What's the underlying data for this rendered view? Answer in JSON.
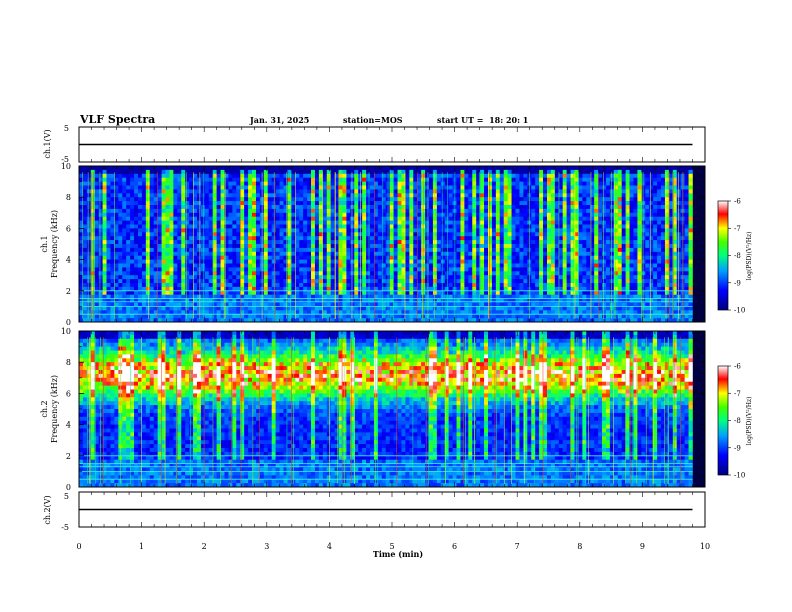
{
  "header": {
    "title": "VLF Spectra",
    "date": "Jan. 31, 2025",
    "station": "station=MOS",
    "start_ut": "start UT =  18: 20: 1"
  },
  "chart_data": [
    {
      "type": "line",
      "panel": "ch1-voltage",
      "ylabel": "ch.1(V)",
      "ylim": [
        -5,
        5
      ],
      "yticks": [
        "5",
        "-5"
      ],
      "series": [
        {
          "name": "",
          "x": [
            0,
            9.8
          ],
          "y": [
            0,
            0
          ]
        }
      ]
    },
    {
      "type": "heatmap",
      "panel": "ch1-spectrogram",
      "ylabel": "ch.1\nFrequency (kHz)",
      "ylim": [
        0,
        10
      ],
      "yticks": [
        "0",
        "2",
        "4",
        "6",
        "8",
        "10"
      ],
      "x_range_min": [
        0,
        9.8
      ],
      "dominant_band_khz": [
        2,
        10
      ],
      "colorbar": {
        "label": "log(PSD)(V²/Hz)",
        "range": [
          -10,
          -6
        ],
        "ticks": [
          "-6",
          "-7",
          "-8",
          "-9",
          "-10"
        ]
      }
    },
    {
      "type": "heatmap",
      "panel": "ch2-spectrogram",
      "ylabel": "ch.2\nFrequency (kHz)",
      "ylim": [
        0,
        10
      ],
      "yticks": [
        "0",
        "2",
        "4",
        "6",
        "8",
        "10"
      ],
      "x_range_min": [
        0,
        9.8
      ],
      "dominant_band_khz": [
        5.5,
        9
      ],
      "colorbar": {
        "label": "log(PSD)(V²/Hz)",
        "range": [
          -10,
          -6
        ],
        "ticks": [
          "-6",
          "-7",
          "-8",
          "-9",
          "-10"
        ]
      }
    },
    {
      "type": "line",
      "panel": "ch2-voltage",
      "ylabel": "ch.2(V)",
      "ylim": [
        -5,
        5
      ],
      "yticks": [
        "5",
        "-5"
      ],
      "series": [
        {
          "name": "",
          "x": [
            0,
            9.8
          ],
          "y": [
            0,
            0
          ]
        }
      ]
    }
  ],
  "xaxis": {
    "label": "Time (min)",
    "xlim": [
      0,
      10
    ],
    "ticks": [
      "0",
      "1",
      "2",
      "3",
      "4",
      "5",
      "6",
      "7",
      "8",
      "9",
      "10"
    ]
  }
}
